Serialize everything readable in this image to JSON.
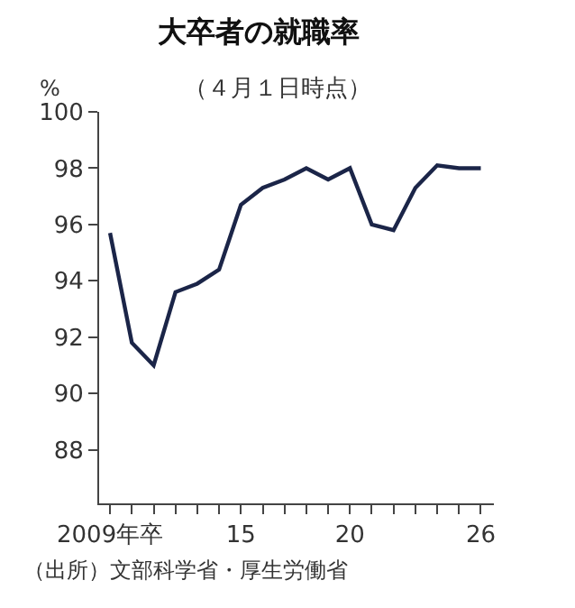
{
  "chart_data": {
    "type": "line",
    "title": "大卒者の就職率",
    "subtitle": "（４月１日時点）",
    "ylabel": "%",
    "x": [
      2009,
      2010,
      2011,
      2012,
      2013,
      2014,
      2015,
      2016,
      2017,
      2018,
      2019,
      2020,
      2021,
      2022,
      2023,
      2024,
      2025,
      2026
    ],
    "series": [
      {
        "color": "#1b2548",
        "values": [
          95.7,
          91.8,
          91.0,
          93.6,
          93.9,
          94.4,
          96.7,
          97.3,
          97.6,
          98.0,
          97.6,
          98.0,
          96.0,
          95.8,
          97.3,
          98.1,
          98.0,
          98.0
        ]
      }
    ],
    "xlim": [
      2008.5,
      2026.6
    ],
    "ylim": [
      86.1,
      100
    ],
    "xticks": [
      {
        "value": 2009,
        "label": "2009年卒"
      },
      {
        "value": 2010,
        "label": null
      },
      {
        "value": 2011,
        "label": null
      },
      {
        "value": 2012,
        "label": null
      },
      {
        "value": 2013,
        "label": null
      },
      {
        "value": 2014,
        "label": null
      },
      {
        "value": 2015,
        "label": "15"
      },
      {
        "value": 2016,
        "label": null
      },
      {
        "value": 2017,
        "label": null
      },
      {
        "value": 2018,
        "label": null
      },
      {
        "value": 2019,
        "label": null
      },
      {
        "value": 2020,
        "label": "20"
      },
      {
        "value": 2021,
        "label": null
      },
      {
        "value": 2022,
        "label": null
      },
      {
        "value": 2023,
        "label": null
      },
      {
        "value": 2024,
        "label": null
      },
      {
        "value": 2025,
        "label": null
      },
      {
        "value": 2026,
        "label": "26"
      }
    ],
    "yticks": [
      88,
      90,
      92,
      94,
      96,
      98,
      100
    ],
    "annotations": [
      "（出所）文部科学省・厚生労働省"
    ],
    "marker": "none",
    "line_style": "solid"
  }
}
